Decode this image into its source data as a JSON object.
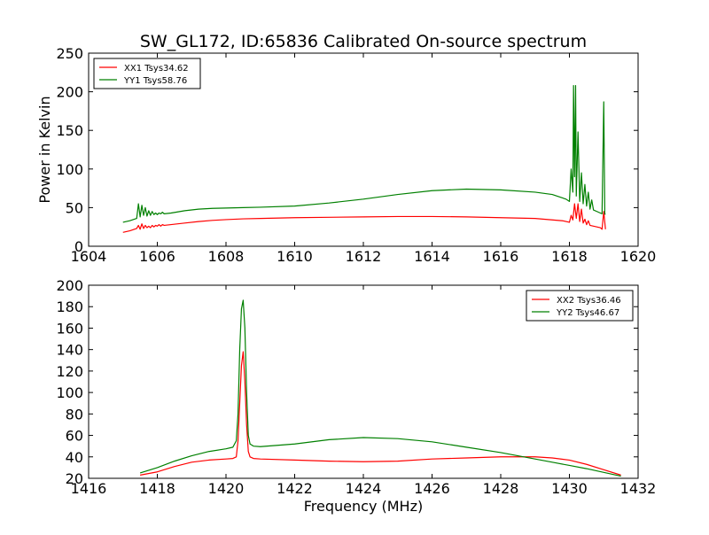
{
  "figure": {
    "title": "SW_GL172, ID:65836 Calibrated On-source spectrum"
  },
  "chart_data": [
    {
      "type": "line",
      "title": "SW_GL172, ID:65836 Calibrated On-source spectrum",
      "xlabel": "",
      "ylabel": "Power in Kelvin",
      "xlim": [
        1604,
        1620
      ],
      "ylim": [
        0,
        250
      ],
      "xticks": [
        "1604",
        "1606",
        "1608",
        "1610",
        "1612",
        "1614",
        "1616",
        "1618",
        "1620"
      ],
      "yticks": [
        "0",
        "50",
        "100",
        "150",
        "200",
        "250"
      ],
      "grid": false,
      "legend_position": "top-left",
      "series": [
        {
          "name": "XX1 Tsys34.62",
          "color": "#ff0000",
          "x": [
            1605.0,
            1605.2,
            1605.4,
            1605.45,
            1605.5,
            1605.55,
            1605.6,
            1605.65,
            1605.7,
            1605.75,
            1605.8,
            1605.85,
            1605.9,
            1605.95,
            1606.0,
            1606.05,
            1606.1,
            1606.15,
            1606.2,
            1606.4,
            1606.8,
            1607.2,
            1607.6,
            1608.0,
            1608.5,
            1609.0,
            1610.0,
            1611.0,
            1612.0,
            1613.0,
            1614.0,
            1615.0,
            1616.0,
            1617.0,
            1617.8,
            1618.0,
            1618.05,
            1618.1,
            1618.15,
            1618.2,
            1618.25,
            1618.3,
            1618.35,
            1618.4,
            1618.45,
            1618.5,
            1618.55,
            1618.6,
            1618.7,
            1618.8,
            1618.9,
            1618.95,
            1619.0,
            1619.05
          ],
          "y": [
            18,
            20,
            23,
            27,
            22,
            29,
            23,
            27,
            24,
            26,
            24,
            27,
            25,
            27,
            26,
            28,
            26,
            28,
            27,
            28,
            30,
            32,
            33.5,
            34.5,
            35.5,
            36,
            37,
            37.5,
            38,
            38.5,
            38.5,
            38,
            37,
            36,
            33,
            31,
            40,
            34,
            55,
            36,
            55,
            32,
            48,
            30,
            35,
            28,
            33,
            27,
            26,
            25,
            24,
            22,
            45,
            22
          ]
        },
        {
          "name": "YY1 Tsys58.76",
          "color": "#008000",
          "x": [
            1605.0,
            1605.2,
            1605.4,
            1605.45,
            1605.5,
            1605.55,
            1605.6,
            1605.65,
            1605.7,
            1605.75,
            1605.8,
            1605.85,
            1605.9,
            1605.95,
            1606.0,
            1606.05,
            1606.1,
            1606.15,
            1606.2,
            1606.4,
            1606.8,
            1607.2,
            1607.6,
            1608.0,
            1608.5,
            1609.0,
            1610.0,
            1611.0,
            1612.0,
            1613.0,
            1614.0,
            1615.0,
            1616.0,
            1617.0,
            1617.5,
            1617.9,
            1618.0,
            1618.05,
            1618.1,
            1618.12,
            1618.15,
            1618.18,
            1618.2,
            1618.25,
            1618.3,
            1618.35,
            1618.4,
            1618.45,
            1618.5,
            1618.55,
            1618.6,
            1618.65,
            1618.7,
            1618.8,
            1618.9,
            1618.95,
            1619.0,
            1619.03,
            1619.05
          ],
          "y": [
            31,
            33,
            36,
            55,
            38,
            53,
            40,
            50,
            39,
            46,
            40,
            45,
            41,
            43,
            41,
            43,
            42,
            44,
            42,
            43,
            46,
            48,
            49,
            49.5,
            50,
            50.5,
            52,
            56,
            61,
            67,
            72,
            74,
            73,
            70,
            67,
            61,
            58,
            100,
            70,
            208,
            90,
            208,
            65,
            148,
            58,
            95,
            55,
            80,
            52,
            70,
            48,
            60,
            47,
            45,
            43,
            42,
            187,
            42,
            41
          ]
        }
      ]
    },
    {
      "type": "line",
      "title": "",
      "xlabel": "Frequency (MHz)",
      "ylabel": "",
      "xlim": [
        1416,
        1432
      ],
      "ylim": [
        20,
        200
      ],
      "xticks": [
        "1416",
        "1418",
        "1420",
        "1422",
        "1424",
        "1426",
        "1428",
        "1430",
        "1432"
      ],
      "yticks": [
        "20",
        "40",
        "60",
        "80",
        "100",
        "120",
        "140",
        "160",
        "180",
        "200"
      ],
      "grid": false,
      "legend_position": "top-right",
      "series": [
        {
          "name": "XX2 Tsys36.46",
          "color": "#ff0000",
          "x": [
            1417.5,
            1418.0,
            1418.5,
            1419.0,
            1419.5,
            1420.0,
            1420.2,
            1420.3,
            1420.35,
            1420.4,
            1420.45,
            1420.5,
            1420.55,
            1420.6,
            1420.65,
            1420.7,
            1420.8,
            1421.0,
            1422.0,
            1423.0,
            1424.0,
            1425.0,
            1426.0,
            1427.0,
            1428.0,
            1429.0,
            1429.5,
            1430.0,
            1430.5,
            1431.0,
            1431.5
          ],
          "y": [
            23,
            26,
            31,
            35,
            37,
            38,
            38.5,
            40,
            55,
            90,
            125,
            138,
            110,
            70,
            45,
            40,
            38.5,
            38,
            37,
            36,
            35.5,
            36,
            38,
            39,
            40,
            40,
            39,
            37,
            33,
            28,
            23
          ]
        },
        {
          "name": "YY2 Tsys46.67",
          "color": "#008000",
          "x": [
            1417.5,
            1418.0,
            1418.5,
            1419.0,
            1419.5,
            1420.0,
            1420.2,
            1420.3,
            1420.35,
            1420.4,
            1420.45,
            1420.5,
            1420.55,
            1420.6,
            1420.65,
            1420.7,
            1420.8,
            1421.0,
            1422.0,
            1423.0,
            1424.0,
            1425.0,
            1426.0,
            1427.0,
            1428.0,
            1429.0,
            1429.5,
            1430.0,
            1430.5,
            1431.0,
            1431.5
          ],
          "y": [
            25,
            30,
            36,
            41,
            45,
            47.5,
            49,
            55,
            80,
            140,
            178,
            186,
            160,
            100,
            60,
            52,
            50,
            49.5,
            52,
            56,
            58,
            57,
            54,
            49,
            44,
            38,
            35,
            32,
            29,
            25.5,
            22
          ]
        }
      ]
    }
  ]
}
